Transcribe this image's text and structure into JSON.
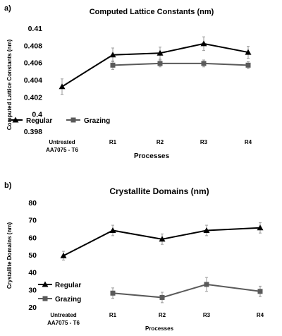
{
  "chart_data": [
    {
      "panel_label": "a)",
      "type": "line",
      "title": "Computed Lattice Constants (nm)",
      "xlabel": "Processes",
      "ylabel": "Computed Lattice Constants (nm)",
      "categories": [
        [
          "Untreated",
          "AA7075 - T6"
        ],
        [
          "R1"
        ],
        [
          "R2"
        ],
        [
          "R3"
        ],
        [
          "R4"
        ]
      ],
      "ylim": [
        0.398,
        0.41
      ],
      "yticks": [
        "0.398",
        "0.4",
        "0.402",
        "0.404",
        "0.406",
        "0.408",
        "0.41"
      ],
      "grid": false,
      "legend_position": "lower-left",
      "series": [
        {
          "name": "Regular",
          "color": "#000000",
          "marker": "triangle",
          "values": [
            0.4032,
            0.4069,
            0.4071,
            0.4082,
            0.4072
          ],
          "errors": [
            0.0009,
            0.0008,
            0.0007,
            0.0008,
            0.0007
          ]
        },
        {
          "name": "Grazing",
          "color": "#5a5a5a",
          "marker": "square",
          "values": [
            null,
            0.4057,
            0.4059,
            0.4059,
            0.4057
          ],
          "errors": [
            null,
            0.0005,
            0.0004,
            0.0004,
            0.0004
          ]
        }
      ]
    },
    {
      "panel_label": "b)",
      "type": "line",
      "title": "Crystallite Domains (nm)",
      "xlabel": "Processes",
      "ylabel": "Crystallite Domains (nm)",
      "categories": [
        [
          "Untreated",
          "AA7075 - T6"
        ],
        [
          "R1"
        ],
        [
          "R2"
        ],
        [
          "R3"
        ],
        [
          "R4"
        ]
      ],
      "ylim": [
        20,
        80
      ],
      "yticks": [
        "20",
        "30",
        "40",
        "50",
        "60",
        "70",
        "80"
      ],
      "grid": false,
      "legend_position": "left",
      "series": [
        {
          "name": "Regular",
          "color": "#000000",
          "marker": "triangle",
          "values": [
            49.5,
            64,
            59,
            64,
            65.5
          ],
          "errors": [
            2.5,
            3,
            3,
            3,
            3
          ]
        },
        {
          "name": "Grazing",
          "color": "#5a5a5a",
          "marker": "square",
          "values": [
            null,
            28,
            25.5,
            33,
            29
          ],
          "errors": [
            null,
            3,
            3,
            4,
            3
          ]
        }
      ]
    }
  ]
}
